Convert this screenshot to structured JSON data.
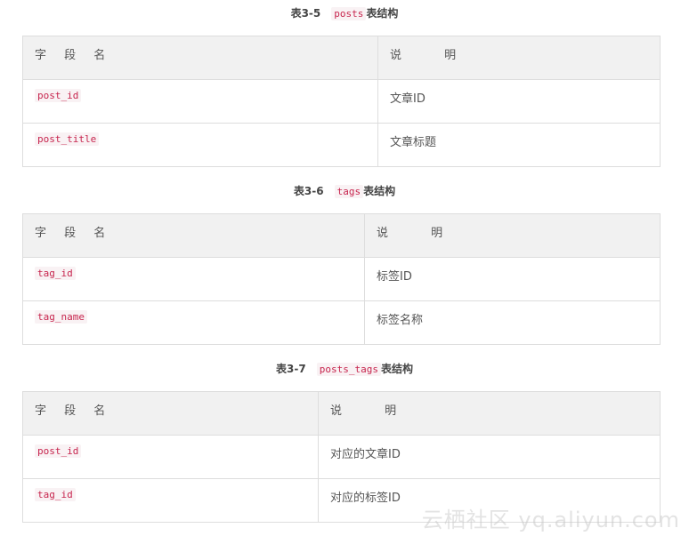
{
  "tables": [
    {
      "caption_num": "表3-5",
      "caption_code": "posts",
      "caption_suffix": "表结构",
      "header": [
        "字 段 名",
        "说 明"
      ],
      "rows": [
        [
          "post_id",
          "文章ID"
        ],
        [
          "post_title",
          "文章标题"
        ]
      ]
    },
    {
      "caption_num": "表3-6",
      "caption_code": "tags",
      "caption_suffix": "表结构",
      "header": [
        "字 段 名",
        "说 明"
      ],
      "rows": [
        [
          "tag_id",
          "标签ID"
        ],
        [
          "tag_name",
          "标签名称"
        ]
      ]
    },
    {
      "caption_num": "表3-7",
      "caption_code": "posts_tags",
      "caption_suffix": "表结构",
      "header": [
        "字 段 名",
        "说 明"
      ],
      "rows": [
        [
          "post_id",
          "对应的文章ID"
        ],
        [
          "tag_id",
          "对应的标签ID"
        ]
      ]
    }
  ],
  "watermark": "云栖社区 yq.aliyun.com"
}
